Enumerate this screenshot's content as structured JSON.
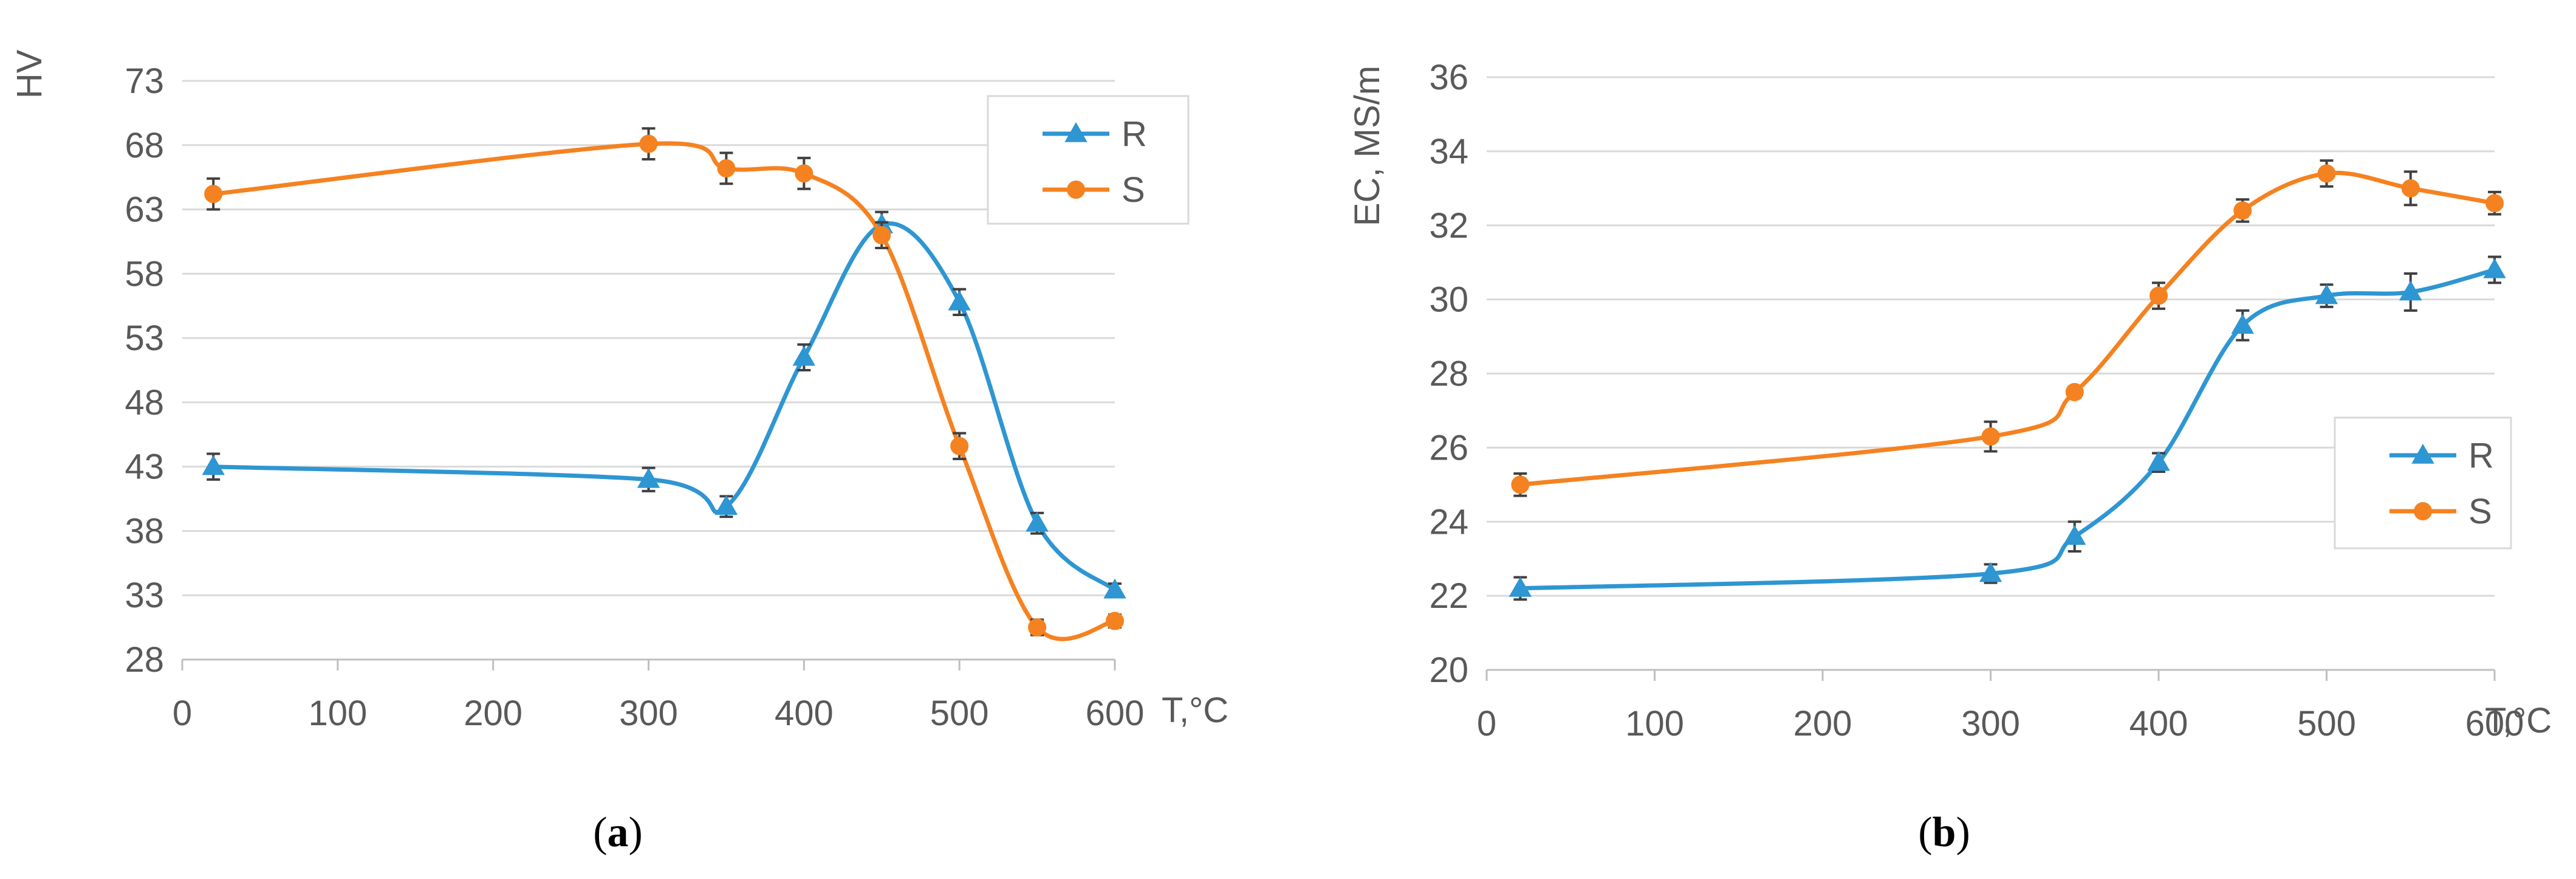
{
  "colors": {
    "R": "#2E96D2",
    "S": "#F58220"
  },
  "chart_data": [
    {
      "type": "line",
      "panel": "a",
      "caption_open": "(",
      "caption_letter": "a",
      "caption_close": ")",
      "ylabel": "HV",
      "xlabel": "T,°C",
      "xlim": [
        0,
        600
      ],
      "ylim": [
        28,
        73
      ],
      "xticks": [
        0,
        100,
        200,
        300,
        400,
        500,
        600
      ],
      "yticks": [
        28,
        33,
        38,
        43,
        48,
        53,
        58,
        63,
        68,
        73
      ],
      "legend_position": "top-right",
      "series": [
        {
          "name": "R",
          "marker": "triangle",
          "x": [
            20,
            300,
            350,
            400,
            450,
            500,
            550,
            600
          ],
          "y": [
            43.0,
            42.0,
            39.9,
            51.5,
            61.8,
            55.8,
            38.6,
            33.4
          ],
          "err": [
            1.0,
            0.9,
            0.8,
            1.0,
            1.0,
            1.0,
            0.8,
            0.5
          ]
        },
        {
          "name": "S",
          "marker": "circle",
          "x": [
            20,
            300,
            350,
            400,
            450,
            500,
            550,
            600
          ],
          "y": [
            64.2,
            68.1,
            66.2,
            65.8,
            61.0,
            44.6,
            30.5,
            31.0
          ],
          "err": [
            1.2,
            1.2,
            1.2,
            1.2,
            1.0,
            1.0,
            0.6,
            0.5
          ]
        }
      ]
    },
    {
      "type": "line",
      "panel": "b",
      "caption_open": "(",
      "caption_letter": "b",
      "caption_close": ")",
      "ylabel": "EC, MS/m",
      "xlabel": "T,°C",
      "xlim": [
        0,
        600
      ],
      "ylim": [
        20,
        36
      ],
      "xticks": [
        0,
        100,
        200,
        300,
        400,
        500,
        600
      ],
      "yticks": [
        20,
        22,
        24,
        26,
        28,
        30,
        32,
        34,
        36
      ],
      "legend_position": "right",
      "series": [
        {
          "name": "R",
          "marker": "triangle",
          "x": [
            20,
            300,
            350,
            400,
            450,
            500,
            550,
            600
          ],
          "y": [
            22.2,
            22.6,
            23.6,
            25.6,
            29.3,
            30.1,
            30.2,
            30.8
          ],
          "err": [
            0.3,
            0.25,
            0.4,
            0.25,
            0.4,
            0.3,
            0.5,
            0.35
          ]
        },
        {
          "name": "S",
          "marker": "circle",
          "x": [
            20,
            300,
            350,
            400,
            450,
            500,
            550,
            600
          ],
          "y": [
            25.0,
            26.3,
            27.5,
            30.1,
            32.4,
            33.4,
            33.0,
            32.6
          ],
          "err": [
            0.3,
            0.4,
            0.15,
            0.35,
            0.3,
            0.35,
            0.45,
            0.3
          ]
        }
      ]
    }
  ]
}
